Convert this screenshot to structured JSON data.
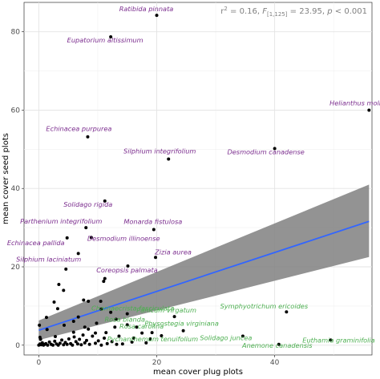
{
  "chart_data": {
    "type": "scatter",
    "title": "",
    "xlabel": "mean cover plug plots",
    "ylabel": "mean cover seed plots",
    "xlim": [
      -2.5,
      56.5
    ],
    "ylim": [
      -2.5,
      87.5
    ],
    "xticks": [
      "0",
      "20",
      "40"
    ],
    "xtick_values": [
      0,
      20,
      40
    ],
    "yticks": [
      "0",
      "20",
      "40",
      "60",
      "80"
    ],
    "ytick_values": [
      0,
      20,
      40,
      60,
      80
    ],
    "grid": true,
    "annotation": {
      "r2": "0.16",
      "df": "[1,125]",
      "f": "23.95",
      "p": "0.001"
    },
    "regression": {
      "line_color": "#3366ff",
      "band_color": "#808080",
      "x": [
        0,
        56
      ],
      "fit": [
        3.8,
        31.6
      ],
      "lower": [
        1.3,
        22.5
      ],
      "upper": [
        6.3,
        41.0
      ]
    },
    "label_colors": {
      "purple": "#7b2d8e",
      "green": "#4caf50"
    },
    "labeled_points": [
      {
        "label": "Ratibida pinnata",
        "x": 20.0,
        "y": 84.2,
        "color": "purple"
      },
      {
        "label": "Eupatorium altissimum",
        "x": 12.2,
        "y": 78.7,
        "color": "purple"
      },
      {
        "label": "Helianthus mollis",
        "x": 56.0,
        "y": 60.0,
        "color": "purple"
      },
      {
        "label": "Echinacea purpurea",
        "x": 8.3,
        "y": 53.2,
        "color": "purple"
      },
      {
        "label": "Desmodium canadense",
        "x": 40.0,
        "y": 50.2,
        "color": "purple"
      },
      {
        "label": "Silphium integrifolium",
        "x": 22.0,
        "y": 47.5,
        "color": "purple"
      },
      {
        "label": "Solidago rigida",
        "x": 11.2,
        "y": 36.8,
        "color": "purple"
      },
      {
        "label": "Monarda fistulosa",
        "x": 19.5,
        "y": 29.5,
        "color": "purple"
      },
      {
        "label": "Parthenium integrifolium",
        "x": 8.0,
        "y": 30.0,
        "color": "purple"
      },
      {
        "label": "Desmodium illinoense",
        "x": 8.9,
        "y": 27.5,
        "color": "purple"
      },
      {
        "label": "Echinacea pallida",
        "x": 4.8,
        "y": 27.4,
        "color": "purple"
      },
      {
        "label": "Silphium laciniatum",
        "x": 6.7,
        "y": 23.4,
        "color": "purple"
      },
      {
        "label": "Zizia aurea",
        "x": 19.8,
        "y": 22.4,
        "color": "purple"
      },
      {
        "label": "Coreopsis palmata",
        "x": 15.1,
        "y": 20.2,
        "color": "purple"
      },
      {
        "label": "Chamaecrista fasciculata",
        "x": 15.0,
        "y": 8.0,
        "color": "green"
      },
      {
        "label": "Panicum virgatum",
        "x": 23.0,
        "y": 7.3,
        "color": "green"
      },
      {
        "label": "Symphyotrichum ericoides",
        "x": 42.0,
        "y": 8.5,
        "color": "green"
      },
      {
        "label": "Rosa carolina",
        "x": 19.2,
        "y": 3.2,
        "color": "green"
      },
      {
        "label": "Rosa blanda",
        "x": 15.0,
        "y": 5.2,
        "color": "green"
      },
      {
        "label": "Physostegia virginiana",
        "x": 24.5,
        "y": 3.7,
        "color": "green"
      },
      {
        "label": "Pycnanthemum tenuifolium",
        "x": 20.8,
        "y": 2.4,
        "color": "green"
      },
      {
        "label": "Solidago juncea",
        "x": 34.6,
        "y": 2.3,
        "color": "green"
      },
      {
        "label": "Euthamia graminifolia",
        "x": 49.5,
        "y": 1.3,
        "color": "green"
      },
      {
        "label": "Anemone canadensis",
        "x": 40.7,
        "y": 0.2,
        "color": "green"
      }
    ],
    "other_points": [
      [
        0.0,
        0.0
      ],
      [
        0.2,
        0.3
      ],
      [
        0.4,
        0.1
      ],
      [
        0.6,
        0.6
      ],
      [
        0.8,
        0.0
      ],
      [
        1.0,
        0.2
      ],
      [
        1.2,
        0.4
      ],
      [
        1.5,
        0.0
      ],
      [
        1.8,
        0.8
      ],
      [
        2.1,
        0.2
      ],
      [
        2.4,
        0.0
      ],
      [
        2.7,
        1.0
      ],
      [
        3.0,
        0.3
      ],
      [
        3.3,
        0.0
      ],
      [
        3.6,
        0.5
      ],
      [
        3.9,
        1.3
      ],
      [
        4.2,
        0.1
      ],
      [
        4.5,
        0.7
      ],
      [
        4.8,
        0.2
      ],
      [
        5.1,
        1.6
      ],
      [
        5.4,
        0.4
      ],
      [
        5.7,
        0.0
      ],
      [
        6.0,
        2.1
      ],
      [
        6.3,
        0.9
      ],
      [
        6.6,
        0.3
      ],
      [
        6.9,
        1.5
      ],
      [
        7.2,
        0.1
      ],
      [
        7.5,
        2.6
      ],
      [
        7.8,
        0.6
      ],
      [
        8.1,
        1.2
      ],
      [
        8.6,
        0.2
      ],
      [
        9.1,
        2.3
      ],
      [
        9.6,
        0.5
      ],
      [
        10.1,
        1.1
      ],
      [
        10.6,
        0.0
      ],
      [
        11.1,
        1.8
      ],
      [
        11.6,
        0.4
      ],
      [
        12.4,
        0.9
      ],
      [
        13.2,
        0.2
      ],
      [
        14.2,
        0.3
      ],
      [
        2.8,
        2.2
      ],
      [
        5.9,
        3.3
      ],
      [
        1.4,
        4.0
      ],
      [
        4.3,
        5.1
      ],
      [
        8.4,
        4.1
      ],
      [
        11.4,
        3.2
      ],
      [
        0.2,
        2.0
      ],
      [
        9.8,
        5.6
      ],
      [
        1.3,
        7.1
      ],
      [
        6.7,
        7.2
      ],
      [
        2.6,
        11.0
      ],
      [
        4.2,
        14.0
      ],
      [
        5.9,
        6.1
      ],
      [
        7.8,
        4.6
      ],
      [
        10.6,
        9.2
      ],
      [
        12.2,
        8.4
      ],
      [
        13.1,
        6.6
      ],
      [
        9.6,
        3.1
      ],
      [
        0.3,
        1.5
      ],
      [
        3.2,
        9.3
      ],
      [
        4.6,
        19.4
      ],
      [
        7.6,
        11.5
      ],
      [
        8.4,
        11.2
      ],
      [
        10.5,
        11.2
      ],
      [
        11.2,
        17.0
      ],
      [
        11.0,
        16.3
      ],
      [
        3.4,
        15.5
      ],
      [
        15.8,
        0.8
      ],
      [
        17.5,
        3.1
      ],
      [
        18.2,
        0.6
      ],
      [
        18.9,
        1.6
      ],
      [
        16.6,
        4.6
      ],
      [
        16.1,
        1.8
      ],
      [
        13.6,
        2.3
      ],
      [
        12.9,
        4.6
      ],
      [
        0.1,
        5.1
      ]
    ]
  }
}
